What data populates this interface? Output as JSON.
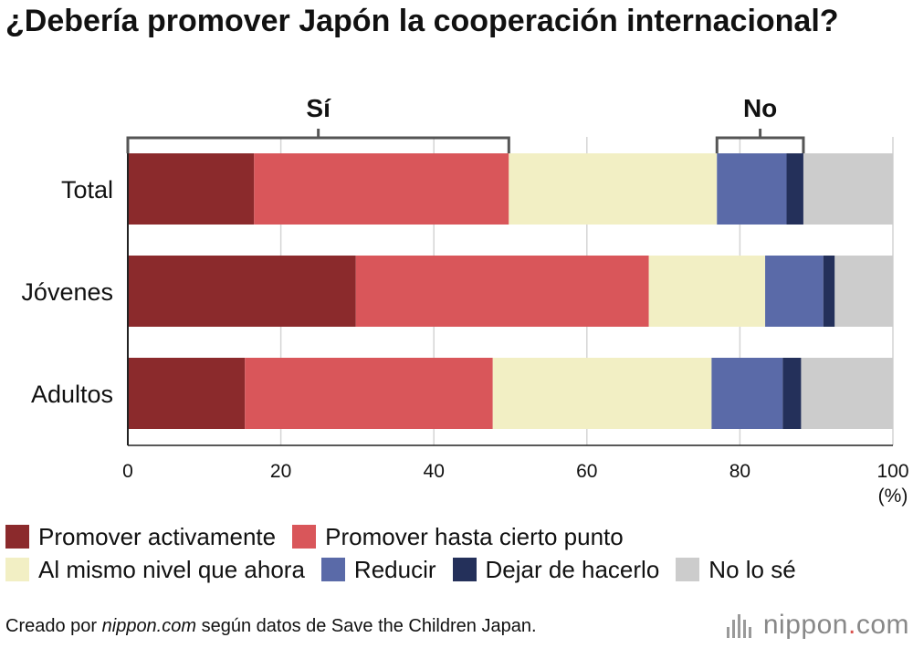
{
  "title": "¿Debería promover Japón la cooperación internacional?",
  "chart_data": {
    "type": "stacked-bar-horizontal",
    "title": "¿Debería promover Japón la cooperación internacional?",
    "categories": [
      "Total",
      "Jóvenes",
      "Adultos"
    ],
    "series": [
      {
        "name": "Promover activamente",
        "color": "#8b2a2c",
        "values": [
          16.5,
          29.8,
          15.3
        ]
      },
      {
        "name": "Promover hasta cierto punto",
        "color": "#d9565a",
        "values": [
          33.3,
          38.3,
          32.4
        ]
      },
      {
        "name": "Al mismo nivel que ahora",
        "color": "#f2efc4",
        "values": [
          27.2,
          15.2,
          28.6
        ]
      },
      {
        "name": "Reducir",
        "color": "#5a6aa8",
        "values": [
          9.1,
          7.6,
          9.3
        ]
      },
      {
        "name": "Dejar de hacerlo",
        "color": "#24305a",
        "values": [
          2.2,
          1.5,
          2.4
        ]
      },
      {
        "name": "No lo sé",
        "color": "#cccccc",
        "values": [
          11.7,
          7.6,
          12.0
        ]
      }
    ],
    "xlim": [
      0,
      100
    ],
    "xticks": [
      0,
      20,
      40,
      60,
      80,
      100
    ],
    "unit_label": "(%)",
    "grid": true,
    "brackets": [
      {
        "label": "Sí",
        "from": 0,
        "to": 49.8
      },
      {
        "label": "No",
        "from": 77.0,
        "to": 88.3
      }
    ]
  },
  "legend_position": "bottom",
  "footer": {
    "prefix": "Creado por ",
    "site": "nippon.com",
    "suffix": " según datos de Save the Children Japan."
  },
  "brand": {
    "name": "nippon",
    "dot": ".",
    "tld": "com"
  }
}
